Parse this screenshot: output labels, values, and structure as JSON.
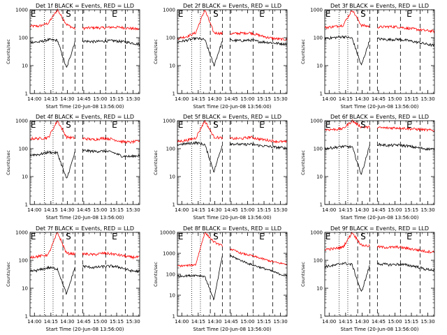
{
  "chart_data": [
    {
      "type": "line",
      "title": "Det 1f BLACK = Events, RED = LLD",
      "ylabel": "Counts/sec",
      "xlabel": "Start Time (20-Jun-08 13:56:00)",
      "x_ticks": [
        "14:00",
        "14:15",
        "14:30",
        "14:45",
        "15:00",
        "15:15",
        "15:30"
      ],
      "ylim": [
        1,
        1000
      ],
      "y_ticks": [
        "1",
        "10",
        "100",
        "1000"
      ],
      "y_scale": "log",
      "markers": [
        {
          "label": "E",
          "time": "13:59"
        },
        {
          "label": "S",
          "time": "14:31"
        },
        {
          "label": "E",
          "time": "15:13"
        }
      ],
      "series": [
        {
          "color": "#ff0000",
          "level": [
            260,
            260,
            330,
            1000,
            300,
            200,
            220,
            230,
            225,
            240,
            235,
            215,
            200
          ]
        },
        {
          "color": "#000000",
          "level": [
            70,
            70,
            85,
            80,
            8,
            90,
            75,
            72,
            75,
            78,
            73,
            66,
            58
          ]
        }
      ]
    },
    {
      "type": "line",
      "title": "Det 2f BLACK = Events, RED = LLD",
      "ylabel": "Counts/sec",
      "xlabel": "Start Time (20-Jun-08 13:56:00)",
      "x_ticks": [
        "14:00",
        "14:15",
        "14:30",
        "14:45",
        "15:00",
        "15:15",
        "15:30"
      ],
      "ylim": [
        1,
        1000
      ],
      "y_ticks": [
        "1",
        "10",
        "100",
        "1000"
      ],
      "y_scale": "log",
      "markers": [
        {
          "label": "E",
          "time": "13:59"
        },
        {
          "label": "S",
          "time": "14:31"
        },
        {
          "label": "E",
          "time": "15:13"
        }
      ],
      "series": [
        {
          "color": "#ff0000",
          "level": [
            95,
            110,
            150,
            1000,
            150,
            140,
            140,
            145,
            150,
            120,
            100,
            90,
            85
          ]
        },
        {
          "color": "#000000",
          "level": [
            70,
            80,
            95,
            85,
            10,
            90,
            80,
            78,
            82,
            72,
            68,
            62,
            60
          ]
        }
      ]
    },
    {
      "type": "line",
      "title": "Det 3f BLACK = Events, RED = LLD",
      "ylabel": "Counts/sec",
      "xlabel": "Start Time (20-Jun-08 13:56:00)",
      "x_ticks": [
        "14:00",
        "14:15",
        "14:30",
        "14:45",
        "15:00",
        "15:15",
        "15:30"
      ],
      "ylim": [
        1,
        1000
      ],
      "y_ticks": [
        "1",
        "10",
        "100",
        "1000"
      ],
      "y_scale": "log",
      "markers": [
        {
          "label": "E",
          "time": "13:59"
        },
        {
          "label": "S",
          "time": "14:31"
        },
        {
          "label": "E",
          "time": "15:13"
        }
      ],
      "series": [
        {
          "color": "#ff0000",
          "level": [
            230,
            250,
            280,
            1000,
            280,
            250,
            240,
            250,
            245,
            220,
            200,
            180,
            170
          ]
        },
        {
          "color": "#000000",
          "level": [
            95,
            100,
            110,
            95,
            10,
            100,
            90,
            85,
            88,
            80,
            70,
            60,
            52
          ]
        }
      ]
    },
    {
      "type": "line",
      "title": "Det 4f BLACK = Events, RED = LLD",
      "ylabel": "Counts/sec",
      "xlabel": "Start Time (20-Jun-08 13:56:00)",
      "x_ticks": [
        "14:00",
        "14:15",
        "14:30",
        "14:45",
        "15:00",
        "15:15",
        "15:30"
      ],
      "ylim": [
        1,
        1000
      ],
      "y_ticks": [
        "1",
        "10",
        "100",
        "1000"
      ],
      "y_scale": "log",
      "markers": [
        {
          "label": "E",
          "time": "13:59"
        },
        {
          "label": "S",
          "time": "14:31"
        },
        {
          "label": "E",
          "time": "15:13"
        }
      ],
      "series": [
        {
          "color": "#ff0000",
          "level": [
            230,
            230,
            250,
            1000,
            260,
            240,
            230,
            210,
            240,
            220,
            180,
            170,
            190
          ]
        },
        {
          "color": "#000000",
          "level": [
            60,
            62,
            75,
            70,
            8,
            90,
            85,
            80,
            82,
            75,
            55,
            52,
            58
          ]
        }
      ]
    },
    {
      "type": "line",
      "title": "Det 5f BLACK = Events, RED = LLD",
      "ylabel": "Counts/sec",
      "xlabel": "Start Time (20-Jun-08 13:56:00)",
      "x_ticks": [
        "14:00",
        "14:15",
        "14:30",
        "14:45",
        "15:00",
        "15:15",
        "15:30"
      ],
      "ylim": [
        1,
        1000
      ],
      "y_ticks": [
        "1",
        "10",
        "100",
        "1000"
      ],
      "y_scale": "log",
      "markers": [
        {
          "label": "E",
          "time": "13:59"
        },
        {
          "label": "S",
          "time": "14:31"
        },
        {
          "label": "E",
          "time": "15:13"
        }
      ],
      "series": [
        {
          "color": "#ff0000",
          "level": [
            180,
            200,
            240,
            1000,
            260,
            240,
            230,
            230,
            260,
            220,
            200,
            180,
            175
          ]
        },
        {
          "color": "#000000",
          "level": [
            140,
            150,
            165,
            140,
            15,
            170,
            150,
            140,
            145,
            130,
            120,
            110,
            105
          ]
        }
      ]
    },
    {
      "type": "line",
      "title": "Det 6f BLACK = Events, RED = LLD",
      "ylabel": "Counts/sec",
      "xlabel": "Start Time (20-Jun-08 13:56:00)",
      "x_ticks": [
        "14:00",
        "14:15",
        "14:30",
        "14:45",
        "15:00",
        "15:15",
        "15:30"
      ],
      "ylim": [
        1,
        1000
      ],
      "y_ticks": [
        "1",
        "10",
        "100",
        "1000"
      ],
      "y_scale": "log",
      "markers": [
        {
          "label": "E",
          "time": "13:59"
        },
        {
          "label": "S",
          "time": "14:31"
        },
        {
          "label": "E",
          "time": "15:13"
        }
      ],
      "series": [
        {
          "color": "#ff0000",
          "level": [
            480,
            490,
            520,
            1000,
            600,
            580,
            560,
            550,
            560,
            530,
            500,
            470,
            450
          ]
        },
        {
          "color": "#000000",
          "level": [
            100,
            110,
            120,
            115,
            12,
            160,
            140,
            130,
            135,
            125,
            110,
            100,
            95
          ]
        }
      ]
    },
    {
      "type": "line",
      "title": "Det 7f BLACK = Events, RED = LLD",
      "ylabel": "Counts/sec",
      "xlabel": "Start Time (20-Jun-08 13:56:00)",
      "x_ticks": [
        "14:00",
        "14:15",
        "14:30",
        "14:45",
        "15:00",
        "15:15",
        "15:30"
      ],
      "ylim": [
        1,
        1000
      ],
      "y_ticks": [
        "1",
        "10",
        "100",
        "1000"
      ],
      "y_scale": "log",
      "markers": [
        {
          "label": "E",
          "time": "13:59"
        },
        {
          "label": "S",
          "time": "14:31"
        },
        {
          "label": "E",
          "time": "15:13"
        }
      ],
      "series": [
        {
          "color": "#ff0000",
          "level": [
            130,
            140,
            160,
            1000,
            180,
            170,
            170,
            160,
            180,
            170,
            150,
            130,
            130
          ]
        },
        {
          "color": "#000000",
          "level": [
            40,
            45,
            55,
            50,
            6,
            70,
            60,
            55,
            60,
            62,
            55,
            42,
            40
          ]
        }
      ]
    },
    {
      "type": "line",
      "title": "Det 8f BLACK = Events, RED = LLD",
      "ylabel": "Counts/sec",
      "xlabel": "Start Time (20-Jun-08 13:56:00)",
      "x_ticks": [
        "14:00",
        "14:15",
        "14:30",
        "14:45",
        "15:00",
        "15:15",
        "15:30"
      ],
      "ylim": [
        1,
        10000
      ],
      "y_ticks": [
        "1",
        "10",
        "100",
        "1000",
        "10000"
      ],
      "y_scale": "log",
      "markers": [
        {
          "label": "E",
          "time": "13:59"
        },
        {
          "label": "S",
          "time": "14:31"
        },
        {
          "label": "E",
          "time": "15:13"
        }
      ],
      "series": [
        {
          "color": "#ff0000",
          "level": [
            250,
            260,
            290,
            10000,
            3500,
            2200,
            1500,
            1000,
            800,
            600,
            450,
            350,
            300
          ]
        },
        {
          "color": "#000000",
          "level": [
            80,
            85,
            90,
            80,
            6,
            1200,
            700,
            450,
            300,
            220,
            160,
            110,
            80
          ]
        }
      ]
    },
    {
      "type": "line",
      "title": "Det 9f BLACK = Events, RED = LLD",
      "ylabel": "Counts/sec",
      "xlabel": "Start Time (20-Jun-08 13:56:00)",
      "x_ticks": [
        "14:00",
        "14:15",
        "14:30",
        "14:45",
        "15:00",
        "15:15",
        "15:30"
      ],
      "ylim": [
        1,
        1000
      ],
      "y_ticks": [
        "1",
        "10",
        "100",
        "1000"
      ],
      "y_scale": "log",
      "markers": [
        {
          "label": "E",
          "time": "13:59"
        },
        {
          "label": "S",
          "time": "14:31"
        },
        {
          "label": "E",
          "time": "15:13"
        }
      ],
      "series": [
        {
          "color": "#ff0000",
          "level": [
            250,
            260,
            300,
            1000,
            350,
            320,
            300,
            290,
            300,
            270,
            240,
            210,
            200
          ]
        },
        {
          "color": "#000000",
          "level": [
            60,
            65,
            80,
            70,
            7,
            80,
            75,
            70,
            72,
            68,
            60,
            48,
            45
          ]
        }
      ]
    }
  ]
}
